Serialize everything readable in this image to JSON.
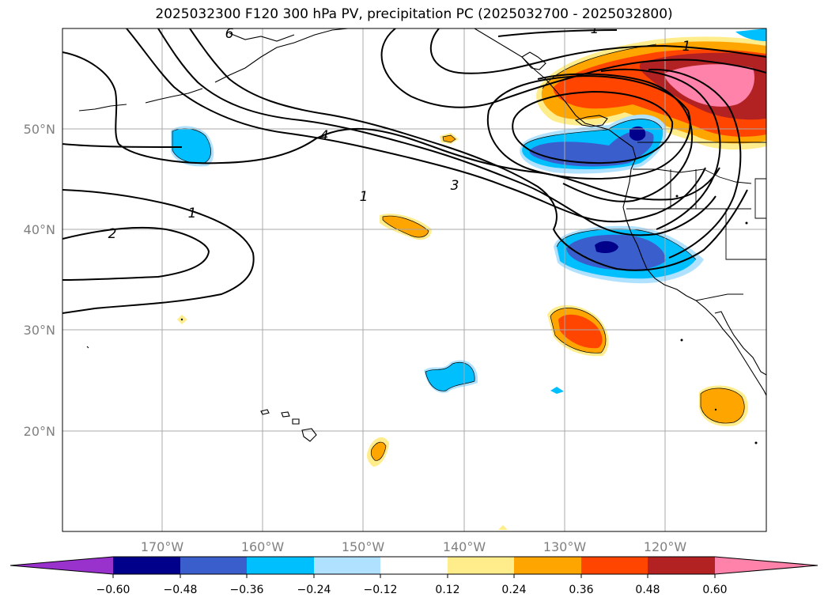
{
  "title": "2025032300 F120 300 hPa PV, precipitation PC (2025032700 - 2025032800)",
  "lon_ticks": [
    "170°W",
    "160°W",
    "150°W",
    "140°W",
    "130°W",
    "120°W"
  ],
  "lat_ticks": [
    "50°N",
    "40°N",
    "30°N",
    "20°N"
  ],
  "pv_labels": [
    "6",
    "4",
    "3",
    "1",
    "1",
    "2",
    "1",
    "1"
  ],
  "colorbar": {
    "ticks": [
      "−0.60",
      "−0.48",
      "−0.36",
      "−0.24",
      "−0.12",
      "0.12",
      "0.24",
      "0.36",
      "0.48",
      "0.60"
    ],
    "colors": [
      "#9932cc",
      "#00008b",
      "#3a5fcd",
      "#00bfff",
      "#b0e2ff",
      "#ffffff",
      "#ffec8b",
      "#ffa500",
      "#ff4500",
      "#b22222",
      "#ff82ab"
    ]
  }
}
